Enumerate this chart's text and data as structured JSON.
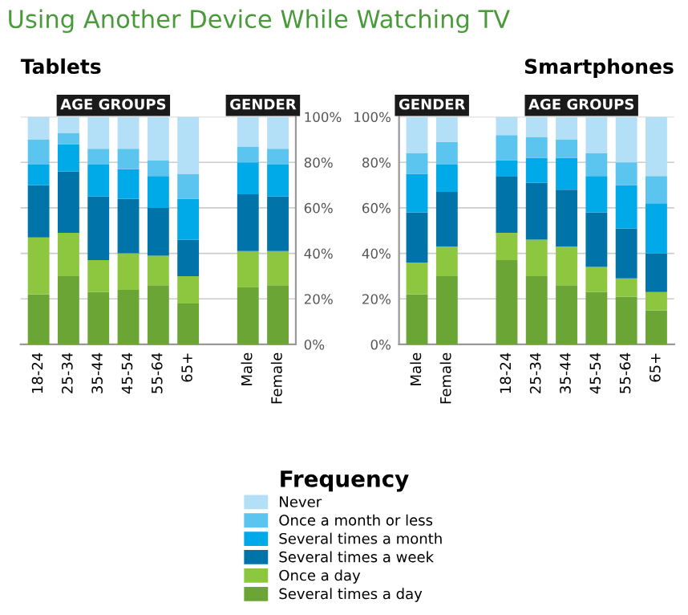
{
  "chart_data": [
    {
      "type": "bar",
      "title": "Using Another Device While Watching TV",
      "subtitle": "Tablets",
      "stacked": true,
      "categories": [
        "18-24",
        "25-34",
        "35-44",
        "45-54",
        "55-64",
        "65+",
        null,
        "Male",
        "Female"
      ],
      "annotations": [
        "AGE GROUPS",
        "GENDER"
      ],
      "series": [
        {
          "name": "Several times a day",
          "color": "#6aa536",
          "values": [
            22,
            30,
            23,
            24,
            26,
            18,
            null,
            25,
            26
          ]
        },
        {
          "name": "Once a day",
          "color": "#8dc63f",
          "values": [
            25,
            19,
            14,
            16,
            13,
            12,
            null,
            16,
            15
          ]
        },
        {
          "name": "Several times a week",
          "color": "#0073a8",
          "values": [
            23,
            27,
            28,
            24,
            21,
            16,
            null,
            25,
            24
          ]
        },
        {
          "name": "Several times a month",
          "color": "#00a9e8",
          "values": [
            9,
            12,
            14,
            13,
            14,
            18,
            null,
            14,
            14
          ]
        },
        {
          "name": "Once a month or less",
          "color": "#5bc4ef",
          "values": [
            11,
            5,
            7,
            9,
            7,
            11,
            null,
            7,
            7
          ]
        },
        {
          "name": "Never",
          "color": "#b3e0f7",
          "values": [
            10,
            7,
            14,
            14,
            19,
            25,
            null,
            13,
            14
          ]
        }
      ],
      "ylim": [
        0,
        100
      ],
      "yticks": [
        {
          "value": 0,
          "label": "0%"
        },
        {
          "value": 20,
          "label": "20%"
        },
        {
          "value": 40,
          "label": "40%"
        },
        {
          "value": 60,
          "label": "60%"
        },
        {
          "value": 80,
          "label": "80%"
        },
        {
          "value": 100,
          "label": "100%"
        }
      ],
      "grid": "y",
      "legend": "bottom",
      "legend_title": "Frequency"
    },
    {
      "type": "bar",
      "title": "Smartphones",
      "stacked": true,
      "categories": [
        "Male",
        "Female",
        null,
        "18-24",
        "25-34",
        "35-44",
        "45-54",
        "55-64",
        "65+"
      ],
      "annotations": [
        "GENDER",
        "AGE GROUPS"
      ],
      "series": [
        {
          "color": "#6aa536",
          "values": [
            22,
            30,
            null,
            37,
            30,
            26,
            23,
            21,
            15
          ]
        },
        {
          "color": "#8dc63f",
          "values": [
            14,
            13,
            null,
            12,
            16,
            17,
            11,
            8,
            8
          ]
        },
        {
          "color": "#0073a8",
          "values": [
            22,
            24,
            null,
            25,
            25,
            25,
            24,
            22,
            17
          ]
        },
        {
          "color": "#00a9e8",
          "values": [
            17,
            12,
            null,
            7,
            11,
            14,
            16,
            19,
            22
          ]
        },
        {
          "color": "#5bc4ef",
          "values": [
            9,
            10,
            null,
            11,
            9,
            8,
            10,
            10,
            12
          ]
        },
        {
          "color": "#b3e0f7",
          "values": [
            16,
            11,
            null,
            8,
            9,
            10,
            16,
            20,
            26
          ]
        }
      ],
      "ylim": [
        0,
        100
      ],
      "yticks": [
        {
          "value": 0,
          "label": "0%"
        },
        {
          "value": 20,
          "label": "20%"
        },
        {
          "value": 40,
          "label": "40%"
        },
        {
          "value": 60,
          "label": "60%"
        },
        {
          "value": 80,
          "label": "80%"
        },
        {
          "value": 100,
          "label": "100%"
        }
      ],
      "grid": "y"
    }
  ]
}
